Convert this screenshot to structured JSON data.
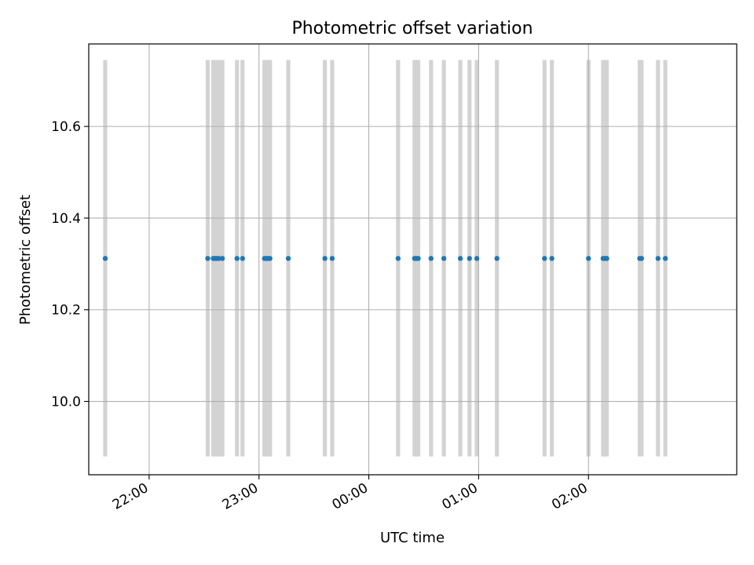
{
  "chart_data": {
    "type": "scatter",
    "title": "Photometric offset variation",
    "xlabel": "UTC time",
    "ylabel": "Photometric offset",
    "x_ticks": [
      "22:00",
      "23:00",
      "00:00",
      "01:00",
      "02:00"
    ],
    "y_ticks": [
      "10.0",
      "10.2",
      "10.4",
      "10.6"
    ],
    "xlim": [
      "21:27",
      "03:21"
    ],
    "ylim": [
      9.84,
      10.78
    ],
    "grid": true,
    "band_range": [
      9.88,
      10.745
    ],
    "series": [
      {
        "color": "#1f77b4",
        "marker": "dot",
        "x": [
          "21:36",
          "22:32",
          "22:35",
          "22:36",
          "22:37",
          "22:38",
          "22:40",
          "22:48",
          "22:51",
          "23:03",
          "23:04",
          "23:05",
          "23:06",
          "23:16",
          "23:36",
          "23:40",
          "00:16",
          "00:25",
          "00:26",
          "00:27",
          "00:34",
          "00:41",
          "00:50",
          "00:55",
          "00:59",
          "01:10",
          "01:36",
          "01:40",
          "02:00",
          "02:08",
          "02:09",
          "02:10",
          "02:28",
          "02:29",
          "02:38",
          "02:42"
        ],
        "y": [
          10.312,
          10.312,
          10.312,
          10.312,
          10.312,
          10.312,
          10.312,
          10.312,
          10.312,
          10.312,
          10.312,
          10.312,
          10.312,
          10.312,
          10.312,
          10.312,
          10.312,
          10.312,
          10.312,
          10.312,
          10.312,
          10.312,
          10.312,
          10.312,
          10.312,
          10.312,
          10.312,
          10.312,
          10.312,
          10.312,
          10.312,
          10.312,
          10.312,
          10.312,
          10.312,
          10.312
        ]
      }
    ],
    "colors": {
      "band": "#d3d3d3",
      "grid": "#b0b0b0",
      "marker": "#1f77b4"
    }
  }
}
